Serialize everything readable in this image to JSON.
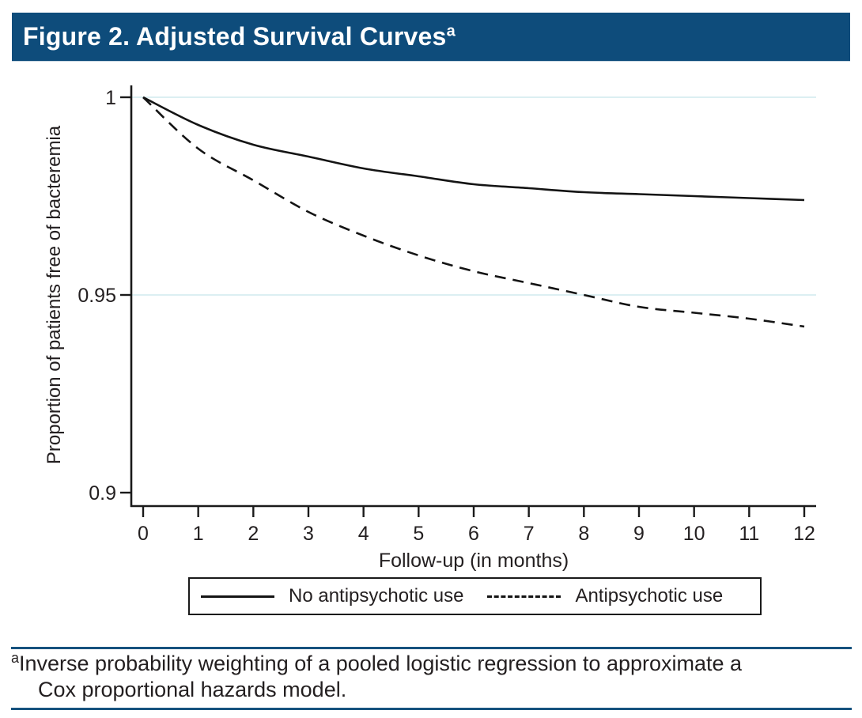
{
  "header": {
    "title": "Figure 2. Adjusted Survival Curves",
    "superscript": "a",
    "bg_color": "#0E4C7B",
    "text_color": "#FFFFFF"
  },
  "chart_data": {
    "type": "line",
    "title": "",
    "xlabel": "Follow-up (in months)",
    "ylabel": "Proportion of patients free of bacteremia",
    "x": [
      0,
      1,
      2,
      3,
      4,
      5,
      6,
      7,
      8,
      9,
      10,
      11,
      12
    ],
    "xtick_labels": [
      "0",
      "1",
      "2",
      "3",
      "4",
      "5",
      "6",
      "7",
      "8",
      "9",
      "10",
      "11",
      "12"
    ],
    "xlim": [
      0,
      12
    ],
    "ylim": [
      0.9,
      1.0
    ],
    "yticks": [
      1,
      0.95,
      0.9
    ],
    "ytick_labels": [
      "1",
      "0.95",
      "0.9"
    ],
    "grid": "horizontal",
    "gridline_values": [
      1.0,
      0.95
    ],
    "gridline_color": "#DCEFF2",
    "axis_color": "#1A1A1A",
    "legend_position": "bottom",
    "series": [
      {
        "name": "No antipsychotic use",
        "style": "solid",
        "color": "#141414",
        "values": [
          1.0,
          0.993,
          0.988,
          0.985,
          0.982,
          0.98,
          0.978,
          0.977,
          0.976,
          0.9755,
          0.975,
          0.9745,
          0.974
        ]
      },
      {
        "name": "Antipsychotic use",
        "style": "dashed",
        "color": "#141414",
        "values": [
          1.0,
          0.987,
          0.979,
          0.971,
          0.965,
          0.96,
          0.956,
          0.953,
          0.95,
          0.947,
          0.9455,
          0.944,
          0.942
        ]
      }
    ]
  },
  "footnote": {
    "marker": "a",
    "line1": "Inverse probability weighting of a pooled logistic regression to approximate a",
    "line2": "Cox proportional hazards model.",
    "rule_color": "#16527E"
  }
}
